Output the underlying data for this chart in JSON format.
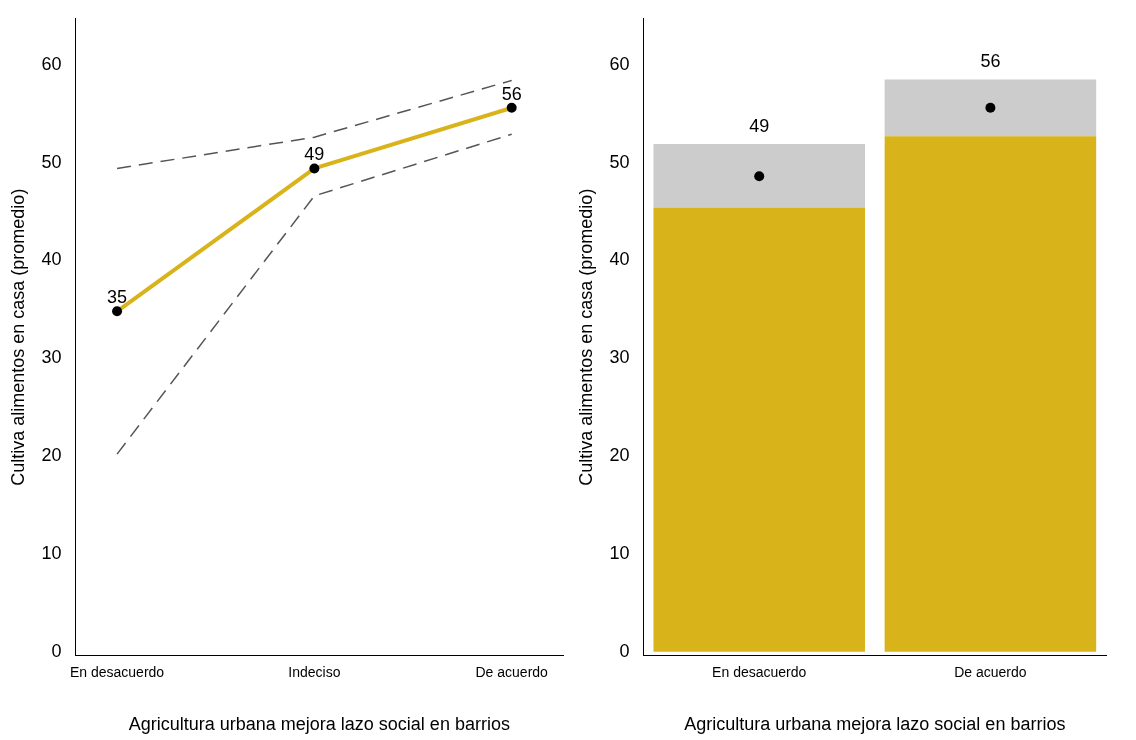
{
  "chart_data": [
    {
      "type": "line",
      "xlabel": "Agricultura urbana mejora lazo social en barrios",
      "ylabel": "Cultiva alimentos en casa (promedio)",
      "categories": [
        "En desacuerdo",
        "Indeciso",
        "De acuerdo"
      ],
      "ylim": [
        -0.4,
        64.7
      ],
      "yticks": [
        0,
        10,
        20,
        30,
        40,
        50,
        60
      ],
      "grid": false,
      "legend": false,
      "series": [
        {
          "color": "#d9b31a",
          "values": [
            34.8,
            49.4,
            55.6
          ],
          "value_labels": [
            "35",
            "49",
            "56"
          ],
          "marker": "circle",
          "line_style": "solid"
        },
        {
          "color": "#555555",
          "values": [
            49.4,
            52.6,
            58.4
          ],
          "marker": "none",
          "line_style": "dashed"
        },
        {
          "color": "#555555",
          "values": [
            20.2,
            46.6,
            52.9
          ],
          "marker": "none",
          "line_style": "dashed"
        }
      ]
    },
    {
      "type": "bar",
      "stacked": true,
      "xlabel": "Agricultura urbana mejora lazo social en barrios",
      "ylabel": "Cultiva alimentos en casa (promedio)",
      "categories": [
        "En desacuerdo",
        "De acuerdo"
      ],
      "ylim": [
        -0.4,
        64.7
      ],
      "yticks": [
        0,
        10,
        20,
        30,
        40,
        50,
        60
      ],
      "grid": false,
      "legend": false,
      "series": [
        {
          "color": "#d9b31a",
          "values": [
            45.4,
            52.7
          ]
        },
        {
          "color": "#cccccc",
          "values": [
            6.5,
            5.8
          ]
        },
        {
          "type": "scatter",
          "color": "#000000",
          "x": [
            "En desacuerdo",
            "De acuerdo"
          ],
          "values": [
            48.6,
            55.6
          ],
          "value_labels": [
            "49",
            "56"
          ],
          "marker": "circle"
        }
      ]
    }
  ]
}
